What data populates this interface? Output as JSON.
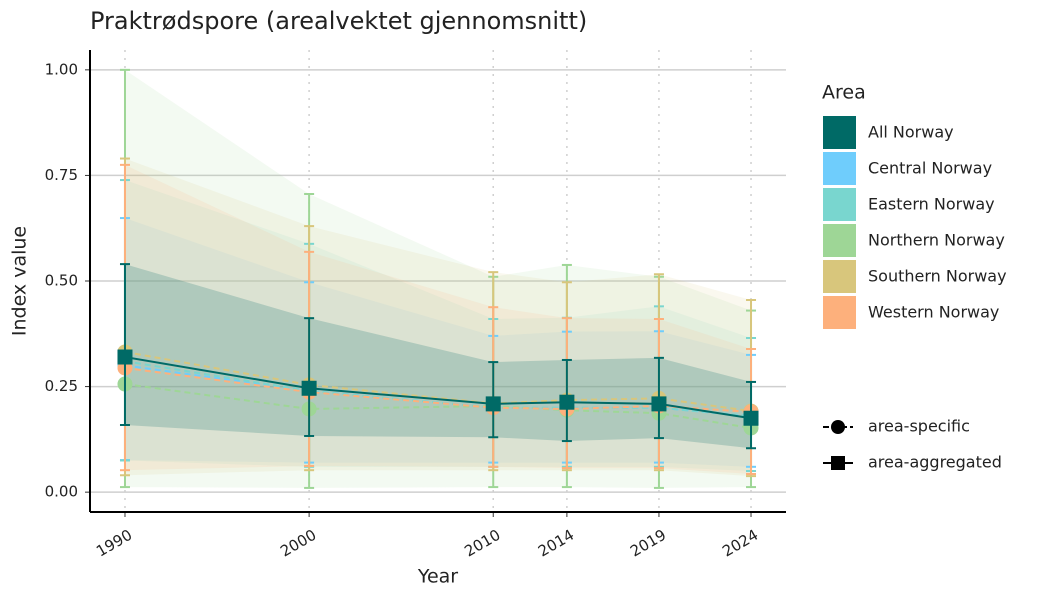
{
  "chart_data": {
    "type": "line",
    "title": "Praktrødspore (arealvektet gjennomsnitt)",
    "x_label": "Year",
    "y_label": "Index value",
    "x": [
      1990,
      2000,
      2010,
      2014,
      2019,
      2024
    ],
    "xlim": [
      1988.1,
      2025.9
    ],
    "xticks": [
      1990,
      2000,
      2010,
      2014,
      2019,
      2024
    ],
    "ylim": [
      -0.047,
      1.047
    ],
    "yticks": [
      {
        "value": 0,
        "label": "0.00"
      },
      {
        "value": 0.25,
        "label": "0.25"
      },
      {
        "value": 0.5,
        "label": "0.50"
      },
      {
        "value": 0.75,
        "label": "0.75"
      },
      {
        "value": 1,
        "label": "1.00"
      }
    ],
    "grid": true,
    "legend_title": "Area",
    "shape_legend": [
      "area-specific",
      "area-aggregated"
    ],
    "series": [
      {
        "name": "All Norway",
        "color": "#006a66",
        "marker": "square",
        "line": "solid",
        "values": [
          0.32,
          0.246,
          0.209,
          0.213,
          0.209,
          0.175
        ],
        "lower": [
          0.159,
          0.133,
          0.13,
          0.121,
          0.128,
          0.104
        ],
        "upper": [
          0.54,
          0.412,
          0.308,
          0.313,
          0.318,
          0.261
        ]
      },
      {
        "name": "Central Norway",
        "color": "#6fcdfc",
        "marker": "circle",
        "line": "dashed",
        "values": [
          0.3,
          0.24,
          0.2,
          0.2,
          0.2,
          0.18
        ],
        "lower": [
          0.076,
          0.07,
          0.07,
          0.07,
          0.07,
          0.06
        ],
        "upper": [
          0.649,
          0.497,
          0.37,
          0.38,
          0.381,
          0.325
        ]
      },
      {
        "name": "Eastern Norway",
        "color": "#79d6cf",
        "marker": "circle",
        "line": "dashed",
        "values": [
          0.31,
          0.24,
          0.2,
          0.2,
          0.2,
          0.18
        ],
        "lower": [
          0.075,
          0.06,
          0.06,
          0.06,
          0.06,
          0.05
        ],
        "upper": [
          0.739,
          0.588,
          0.41,
          0.413,
          0.44,
          0.365
        ]
      },
      {
        "name": "Northern Norway",
        "color": "#9ed696",
        "marker": "circle",
        "line": "dashed",
        "values": [
          0.256,
          0.197,
          0.204,
          0.194,
          0.187,
          0.152
        ],
        "lower": [
          0.012,
          0.01,
          0.012,
          0.012,
          0.01,
          0.012
        ],
        "upper": [
          1.0,
          0.706,
          0.51,
          0.538,
          0.51,
          0.43
        ]
      },
      {
        "name": "Southern Norway",
        "color": "#d8c67c",
        "marker": "circle",
        "line": "dashed",
        "values": [
          0.332,
          0.254,
          0.21,
          0.218,
          0.222,
          0.192
        ],
        "lower": [
          0.04,
          0.052,
          0.052,
          0.052,
          0.052,
          0.038
        ],
        "upper": [
          0.79,
          0.63,
          0.521,
          0.497,
          0.516,
          0.455
        ]
      },
      {
        "name": "Western Norway",
        "color": "#fdb07c",
        "marker": "circle",
        "line": "dashed",
        "values": [
          0.294,
          0.237,
          0.2,
          0.197,
          0.204,
          0.19
        ],
        "lower": [
          0.052,
          0.062,
          0.06,
          0.057,
          0.057,
          0.043
        ],
        "upper": [
          0.775,
          0.569,
          0.438,
          0.412,
          0.41,
          0.339
        ]
      }
    ]
  }
}
